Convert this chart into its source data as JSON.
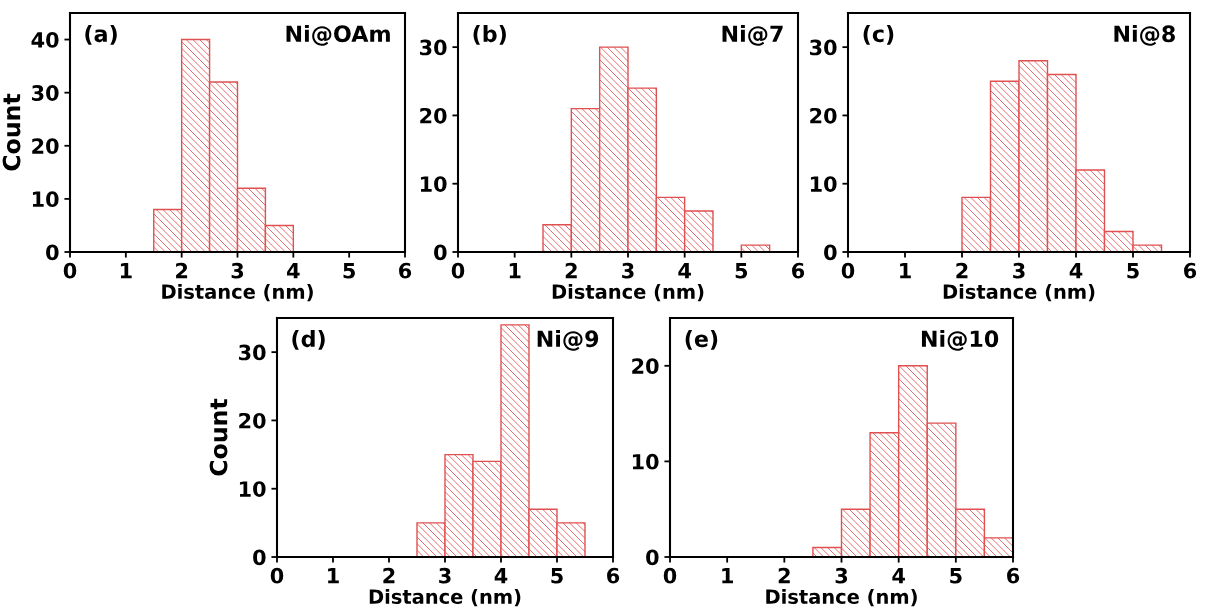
{
  "chart_data": [
    {
      "type": "histogram",
      "annotations": [
        "(a)",
        "Ni@OAm"
      ],
      "xlabel": "Distance (nm)",
      "ylabel": "Count",
      "color": "#e05050",
      "bins": [
        1.5,
        2,
        2.5,
        3,
        3.5,
        4
      ],
      "values": [
        8,
        40,
        32,
        12,
        5
      ],
      "xlim": [
        0,
        6
      ],
      "ylim": [
        0,
        45
      ],
      "xticks": [
        0,
        1,
        2,
        3,
        4,
        5,
        6
      ],
      "yticks": [
        0,
        10,
        20,
        30,
        40
      ]
    },
    {
      "type": "histogram",
      "annotations": [
        "(b)",
        "Ni@7"
      ],
      "xlabel": "Distance (nm)",
      "color": "#e05050",
      "bins": [
        1.5,
        2,
        2.5,
        3,
        3.5,
        4,
        4.5,
        5,
        5.5
      ],
      "values": [
        4,
        21,
        30,
        24,
        8,
        6,
        0,
        1
      ],
      "xlim": [
        0,
        6
      ],
      "ylim": [
        0,
        35
      ],
      "xticks": [
        0,
        1,
        2,
        3,
        4,
        5,
        6
      ],
      "yticks": [
        0,
        10,
        20,
        30
      ]
    },
    {
      "type": "histogram",
      "annotations": [
        "(c)",
        "Ni@8"
      ],
      "xlabel": "Distance (nm)",
      "color": "#e05050",
      "bins": [
        2,
        2.5,
        3,
        3.5,
        4,
        4.5,
        5,
        5.5
      ],
      "values": [
        8,
        25,
        28,
        26,
        12,
        3,
        1
      ],
      "xlim": [
        0,
        6
      ],
      "ylim": [
        0,
        35
      ],
      "xticks": [
        0,
        1,
        2,
        3,
        4,
        5,
        6
      ],
      "yticks": [
        0,
        10,
        20,
        30
      ]
    },
    {
      "type": "histogram",
      "annotations": [
        "(d)",
        "Ni@9"
      ],
      "xlabel": "Distance (nm)",
      "ylabel": "Count",
      "color": "#e05050",
      "bins": [
        2.5,
        3,
        3.5,
        4,
        4.5,
        5,
        5.5
      ],
      "values": [
        5,
        15,
        14,
        34,
        7,
        5
      ],
      "xlim": [
        0,
        6
      ],
      "ylim": [
        0,
        35
      ],
      "xticks": [
        0,
        1,
        2,
        3,
        4,
        5,
        6
      ],
      "yticks": [
        0,
        10,
        20,
        30
      ]
    },
    {
      "type": "histogram",
      "annotations": [
        "(e)",
        "Ni@10"
      ],
      "xlabel": "Distance (nm)",
      "color": "#e05050",
      "bins": [
        2.5,
        3,
        3.5,
        4,
        4.5,
        5,
        5.5,
        6
      ],
      "values": [
        1,
        5,
        13,
        20,
        14,
        5,
        2
      ],
      "xlim": [
        0,
        6
      ],
      "ylim": [
        0,
        25
      ],
      "xticks": [
        0,
        1,
        2,
        3,
        4,
        5,
        6
      ],
      "yticks": [
        0,
        10,
        20
      ]
    }
  ]
}
